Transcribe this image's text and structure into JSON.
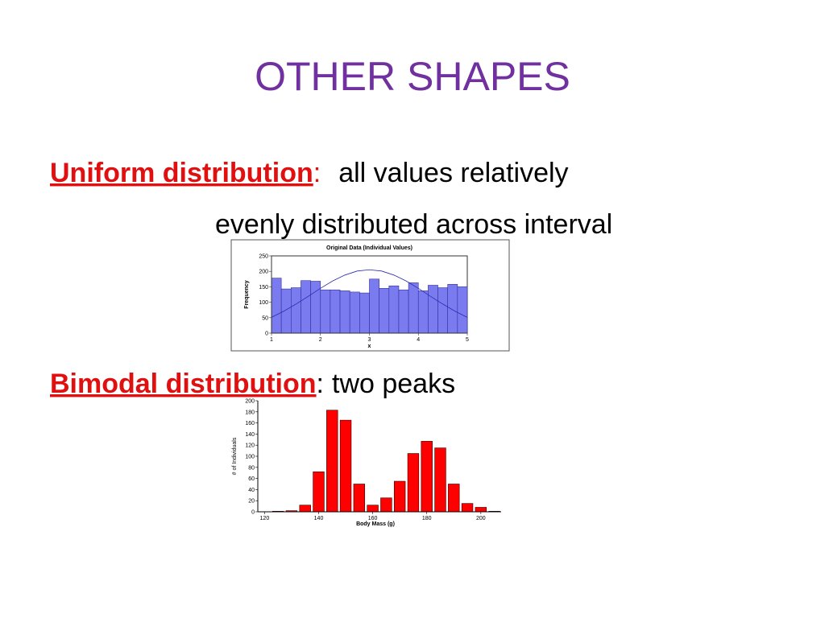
{
  "title": "OTHER SHAPES",
  "items": [
    {
      "term": "Uniform distribution",
      "separator": ":",
      "text": [
        "all values relatively",
        "evenly distributed across interval"
      ]
    },
    {
      "term": "Bimodal distribution",
      "separator": ":",
      "text": [
        "two peaks"
      ]
    }
  ],
  "chart_data": [
    {
      "type": "histogram",
      "title": "Original Data (Individual Values)",
      "xlabel": "x",
      "ylabel": "Frequency",
      "bins": [
        1,
        1.2,
        1.4,
        1.6,
        1.8,
        2,
        2.2,
        2.4,
        2.6,
        2.8,
        3,
        3.2,
        3.4,
        3.6,
        3.8,
        4,
        4.2,
        4.4,
        4.6,
        4.8,
        5
      ],
      "values": [
        178,
        143,
        147,
        170,
        168,
        140,
        140,
        137,
        133,
        130,
        175,
        145,
        153,
        140,
        163,
        137,
        155,
        147,
        158,
        150
      ],
      "color": "#7b7bf0",
      "xlim": [
        1,
        5
      ],
      "ylim": [
        0,
        250
      ],
      "xticks": [
        1,
        2,
        3,
        4,
        5
      ],
      "yticks": [
        0,
        50,
        100,
        150,
        200,
        250
      ],
      "curve": {
        "x": [
          1,
          1.25,
          1.5,
          1.75,
          2,
          2.25,
          2.5,
          2.75,
          3,
          3.25,
          3.5,
          3.75,
          4,
          4.25,
          4.5,
          4.75,
          5
        ],
        "y": [
          51,
          71,
          94,
          119,
          145,
          169,
          188,
          201,
          205,
          201,
          188,
          169,
          145,
          119,
          94,
          71,
          51
        ],
        "color": "#2b2bb0"
      }
    },
    {
      "type": "histogram",
      "xlabel": "Body Mass (g)",
      "ylabel": "# of Individuals",
      "bins": [
        122.5,
        127.5,
        132.5,
        137.5,
        142.5,
        147.5,
        152.5,
        157.5,
        162.5,
        167.5,
        172.5,
        177.5,
        182.5,
        187.5,
        192.5,
        197.5,
        202.5,
        207.5
      ],
      "values": [
        1,
        2,
        12,
        72,
        183,
        165,
        50,
        12,
        25,
        55,
        105,
        127,
        115,
        50,
        15,
        8,
        1
      ],
      "color": "#ff0000",
      "xlim": [
        117.5,
        207.5
      ],
      "ylim": [
        0,
        200
      ],
      "xticks": [
        120,
        140,
        160,
        180,
        200
      ],
      "yticks": [
        0,
        20,
        40,
        60,
        80,
        100,
        120,
        140,
        160,
        180,
        200
      ]
    }
  ]
}
